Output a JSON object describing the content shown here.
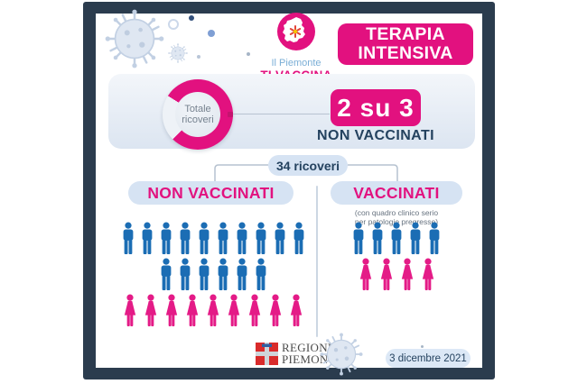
{
  "colors": {
    "frame_navy": "#2b3c4e",
    "accent_pink": "#e2117f",
    "male_blue": "#1b6db4",
    "female_pink": "#e41b87",
    "navy_text": "#24425f",
    "pill_blue": "#d6e3f3",
    "panel_blue": "#dce5f1"
  },
  "header": {
    "brand": {
      "title_line1": "Il Piemonte",
      "title_line2": "TI VACCINA"
    },
    "banner_line1": "TERAPIA",
    "banner_line2": "INTENSIVA"
  },
  "summary_panel": {
    "donut_label_line1": "Totale",
    "donut_label_line2": "ricoveri",
    "ratio_value": "2 su 3",
    "ratio_caption": "NON VACCINATI"
  },
  "breakdown": {
    "total_pill": "34 ricoveri",
    "left": {
      "title": "NON VACCINATI",
      "rows": [
        {
          "type": "male",
          "count": 10
        },
        {
          "type": "male",
          "count": 6
        },
        {
          "type": "female",
          "count": 9
        }
      ]
    },
    "right": {
      "title": "VACCINATI",
      "subtitle_line1": "(con quadro clinico serio",
      "subtitle_line2": "per patologie pregresse)",
      "rows": [
        {
          "type": "male",
          "count": 5
        },
        {
          "type": "female",
          "count": 4
        }
      ]
    }
  },
  "footer": {
    "logo_line1": "REGIONE",
    "logo_line2": "PIEMONTE",
    "date": "3 dicembre 2021"
  },
  "chart_data": [
    {
      "type": "pie",
      "title": "Totale ricoveri",
      "labels": [
        "Non vaccinati",
        "Vaccinati"
      ],
      "values": [
        25,
        9
      ],
      "highlight": "2 su 3 NON VACCINATI",
      "legend_position": "none"
    },
    {
      "type": "pictograph",
      "title": "34 ricoveri",
      "total": 34,
      "groups": [
        {
          "label": "NON VACCINATI",
          "male": 16,
          "female": 9,
          "total": 25
        },
        {
          "label": "VACCINATI",
          "male": 5,
          "female": 4,
          "total": 9,
          "note": "(con quadro clinico serio per patologie pregresse)"
        }
      ]
    }
  ]
}
